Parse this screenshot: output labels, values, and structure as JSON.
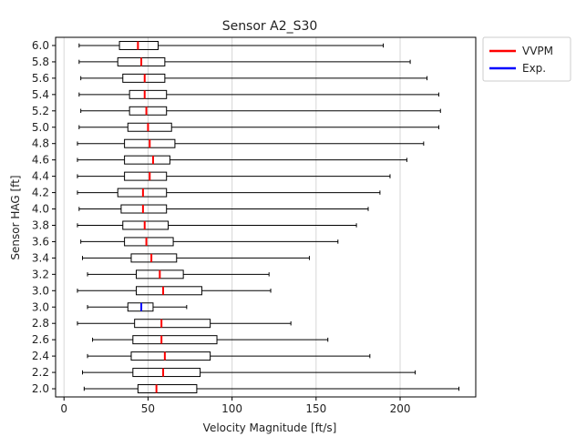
{
  "chart_data": {
    "type": "boxplot",
    "orientation": "horizontal",
    "title": "Sensor A2_S30",
    "xlabel": "Velocity Magnitude [ft/s]",
    "ylabel": "Sensor HAG [ft]",
    "xlim": [
      -5,
      245
    ],
    "xticks": [
      0,
      50,
      100,
      150,
      200
    ],
    "grid": "x",
    "legend": {
      "position": "outside-top-right",
      "entries": [
        {
          "label": "VVPM",
          "color": "#ff0000"
        },
        {
          "label": "Exp.",
          "color": "#0000ff"
        }
      ]
    },
    "categories": [
      "2.0",
      "2.2",
      "2.4",
      "2.6",
      "2.8",
      "3.0",
      "3.0",
      "3.2",
      "3.4",
      "3.6",
      "3.8",
      "4.0",
      "4.2",
      "4.4",
      "4.6",
      "4.8",
      "5.0",
      "5.2",
      "5.4",
      "5.6",
      "5.8",
      "6.0"
    ],
    "boxes": [
      {
        "label": "2.0",
        "series": "VVPM",
        "whislo": 12,
        "q1": 44,
        "median": 55,
        "q3": 79,
        "whishi": 235
      },
      {
        "label": "2.2",
        "series": "VVPM",
        "whislo": 11,
        "q1": 41,
        "median": 59,
        "q3": 81,
        "whishi": 209
      },
      {
        "label": "2.4",
        "series": "VVPM",
        "whislo": 14,
        "q1": 40,
        "median": 60,
        "q3": 87,
        "whishi": 182
      },
      {
        "label": "2.6",
        "series": "VVPM",
        "whislo": 17,
        "q1": 41,
        "median": 58,
        "q3": 91,
        "whishi": 157
      },
      {
        "label": "2.8",
        "series": "VVPM",
        "whislo": 8,
        "q1": 42,
        "median": 58,
        "q3": 87,
        "whishi": 135
      },
      {
        "label": "3.0",
        "series": "Exp.",
        "whislo": 14,
        "q1": 38,
        "median": 46,
        "q3": 53,
        "whishi": 73
      },
      {
        "label": "3.0",
        "series": "VVPM",
        "whislo": 8,
        "q1": 43,
        "median": 59,
        "q3": 82,
        "whishi": 123
      },
      {
        "label": "3.2",
        "series": "VVPM",
        "whislo": 14,
        "q1": 43,
        "median": 57,
        "q3": 71,
        "whishi": 122
      },
      {
        "label": "3.4",
        "series": "VVPM",
        "whislo": 11,
        "q1": 40,
        "median": 52,
        "q3": 67,
        "whishi": 146
      },
      {
        "label": "3.6",
        "series": "VVPM",
        "whislo": 10,
        "q1": 36,
        "median": 49,
        "q3": 65,
        "whishi": 163
      },
      {
        "label": "3.8",
        "series": "VVPM",
        "whislo": 8,
        "q1": 35,
        "median": 48,
        "q3": 62,
        "whishi": 174
      },
      {
        "label": "4.0",
        "series": "VVPM",
        "whislo": 9,
        "q1": 34,
        "median": 47,
        "q3": 61,
        "whishi": 181
      },
      {
        "label": "4.2",
        "series": "VVPM",
        "whislo": 8,
        "q1": 32,
        "median": 47,
        "q3": 61,
        "whishi": 188
      },
      {
        "label": "4.4",
        "series": "VVPM",
        "whislo": 8,
        "q1": 36,
        "median": 51,
        "q3": 61,
        "whishi": 194
      },
      {
        "label": "4.6",
        "series": "VVPM",
        "whislo": 8,
        "q1": 36,
        "median": 53,
        "q3": 63,
        "whishi": 204
      },
      {
        "label": "4.8",
        "series": "VVPM",
        "whislo": 8,
        "q1": 36,
        "median": 51,
        "q3": 66,
        "whishi": 214
      },
      {
        "label": "5.0",
        "series": "VVPM",
        "whislo": 9,
        "q1": 38,
        "median": 50,
        "q3": 64,
        "whishi": 223
      },
      {
        "label": "5.2",
        "series": "VVPM",
        "whislo": 10,
        "q1": 39,
        "median": 49,
        "q3": 61,
        "whishi": 224
      },
      {
        "label": "5.4",
        "series": "VVPM",
        "whislo": 9,
        "q1": 39,
        "median": 48,
        "q3": 61,
        "whishi": 223
      },
      {
        "label": "5.6",
        "series": "VVPM",
        "whislo": 10,
        "q1": 35,
        "median": 48,
        "q3": 60,
        "whishi": 216
      },
      {
        "label": "5.8",
        "series": "VVPM",
        "whislo": 9,
        "q1": 32,
        "median": 46,
        "q3": 60,
        "whishi": 206
      },
      {
        "label": "6.0",
        "series": "VVPM",
        "whislo": 9,
        "q1": 33,
        "median": 44,
        "q3": 56,
        "whishi": 190
      }
    ]
  }
}
